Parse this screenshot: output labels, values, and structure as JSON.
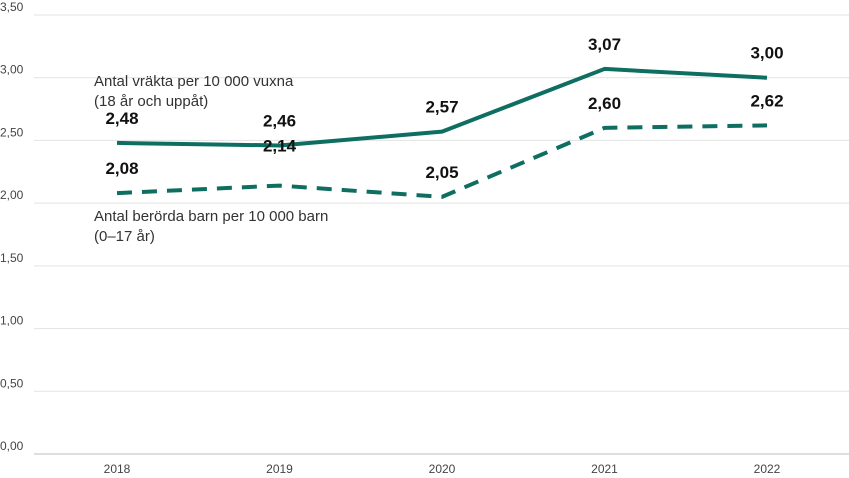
{
  "chart_data": {
    "type": "line",
    "x": [
      "2018",
      "2019",
      "2020",
      "2021",
      "2022"
    ],
    "ylim": [
      0,
      3.5
    ],
    "yticks": [
      "0,00",
      "0,50",
      "1,00",
      "1,50",
      "2,00",
      "2,50",
      "3,00",
      "3,50"
    ],
    "ytick_values": [
      0,
      0.5,
      1,
      1.5,
      2,
      2.5,
      3,
      3.5
    ],
    "grid": "horizontal",
    "series": [
      {
        "name_lines": [
          "Antal vräkta per 10 000 vuxna",
          "(18 år och uppåt)"
        ],
        "values": [
          2.48,
          2.46,
          2.57,
          3.07,
          3.0
        ],
        "labels": [
          "2,48",
          "2,46",
          "2,57",
          "3,07",
          "3,00"
        ],
        "style": "solid",
        "color": "#0f6e62"
      },
      {
        "name_lines": [
          "Antal berörda barn per 10 000 barn",
          "(0–17 år)"
        ],
        "values": [
          2.08,
          2.14,
          2.05,
          2.6,
          2.62
        ],
        "labels": [
          "2,08",
          "2,14",
          "2,05",
          "2,60",
          "2,62"
        ],
        "style": "dashed",
        "color": "#0f6e62"
      }
    ]
  }
}
